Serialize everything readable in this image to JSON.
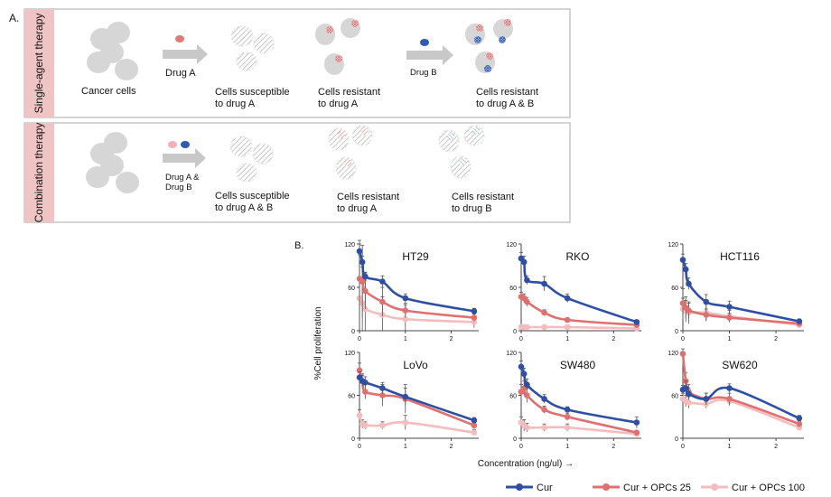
{
  "panel_a": {
    "label": "A.",
    "single": {
      "side_label": "Single-agent therapy",
      "start_label": "Cancer cells",
      "drug1_label": "Drug A",
      "stage1_label": [
        "Cells susceptible",
        "to drug A"
      ],
      "stage2_label": [
        "Cells resistant",
        "to drug A"
      ],
      "drug2_label": "Drug B",
      "stage3_label": [
        "Cells resistant",
        "to drug A & B"
      ]
    },
    "combo": {
      "side_label": "Combination therapy",
      "drug_label": [
        "Drug A &",
        "Drug B"
      ],
      "stage1_label": [
        "Cells susceptible",
        "to drug A & B"
      ],
      "stage2_label": [
        "Cells resistant",
        "to drug A"
      ],
      "stage3_label": [
        "Cells resistant",
        "to drug B"
      ]
    },
    "colors": {
      "drug_a": "#e07a7a",
      "drug_b": "#2e5bb5",
      "drug_a_light": "#f0b2b2",
      "cell": "#d6d6d6",
      "strip": "#f0c4c4"
    }
  },
  "panel_b": {
    "label": "B.",
    "ylabel": "%Cell proliferation",
    "xlabel": "Concentration (ng/ul) →"
  },
  "chart_data": {
    "type": "line",
    "x": [
      0,
      0.0625,
      0.125,
      0.5,
      1,
      2.5
    ],
    "series_styles": [
      {
        "name": "Cur",
        "color": "#2e4fa3"
      },
      {
        "name": "Cur + OPCs 25",
        "color": "#e07070"
      },
      {
        "name": "Cur + OPCs 100",
        "color": "#f4bcbc"
      }
    ],
    "xticks": [
      0,
      1,
      2
    ],
    "yticks": [
      0,
      60,
      120
    ],
    "ylim": [
      0,
      120
    ],
    "xlim": [
      0,
      2.6
    ],
    "subplots": [
      {
        "title": "HT29",
        "series": [
          [
            110,
            95,
            75,
            68,
            45,
            27
          ],
          [
            72,
            68,
            55,
            40,
            28,
            18
          ],
          [
            45,
            38,
            30,
            22,
            16,
            12
          ]
        ],
        "errors": [
          [
            10,
            8,
            6,
            8,
            6,
            4
          ],
          [
            60,
            50,
            25,
            20,
            10,
            5
          ],
          [
            60,
            50,
            40,
            25,
            20,
            8
          ]
        ]
      },
      {
        "title": "RKO",
        "series": [
          [
            100,
            95,
            70,
            65,
            45,
            12
          ],
          [
            47,
            45,
            40,
            25,
            15,
            8
          ],
          [
            5,
            5,
            5,
            5,
            5,
            3
          ]
        ],
        "errors": [
          [
            8,
            8,
            6,
            10,
            6,
            3
          ],
          [
            6,
            6,
            6,
            4,
            3,
            2
          ],
          [
            3,
            3,
            3,
            3,
            3,
            2
          ]
        ]
      },
      {
        "title": "HCT116",
        "series": [
          [
            98,
            85,
            65,
            40,
            33,
            13
          ],
          [
            38,
            32,
            28,
            22,
            18,
            10
          ],
          [
            30,
            27,
            25,
            25,
            20,
            8
          ]
        ],
        "errors": [
          [
            8,
            8,
            8,
            10,
            8,
            3
          ],
          [
            20,
            15,
            10,
            8,
            6,
            4
          ],
          [
            15,
            15,
            15,
            12,
            8,
            4
          ]
        ]
      },
      {
        "title": "LoVo",
        "series": [
          [
            85,
            80,
            78,
            70,
            58,
            25
          ],
          [
            95,
            80,
            65,
            60,
            55,
            18
          ],
          [
            32,
            20,
            18,
            18,
            22,
            8
          ]
        ],
        "errors": [
          [
            8,
            8,
            8,
            8,
            12,
            4
          ],
          [
            10,
            10,
            10,
            15,
            20,
            5
          ],
          [
            8,
            6,
            5,
            5,
            10,
            4
          ]
        ]
      },
      {
        "title": "SW480",
        "series": [
          [
            100,
            90,
            75,
            55,
            40,
            22
          ],
          [
            65,
            70,
            60,
            40,
            30,
            8
          ],
          [
            22,
            18,
            15,
            15,
            15,
            6
          ]
        ],
        "errors": [
          [
            8,
            8,
            8,
            6,
            4,
            8
          ],
          [
            10,
            10,
            10,
            5,
            5,
            3
          ],
          [
            8,
            8,
            6,
            5,
            5,
            3
          ]
        ]
      },
      {
        "title": "SW620",
        "series": [
          [
            68,
            70,
            62,
            55,
            70,
            28
          ],
          [
            118,
            80,
            65,
            55,
            55,
            20
          ],
          [
            55,
            52,
            50,
            48,
            52,
            15
          ]
        ],
        "errors": [
          [
            6,
            10,
            8,
            8,
            6,
            4
          ],
          [
            15,
            12,
            10,
            8,
            8,
            4
          ],
          [
            8,
            8,
            8,
            6,
            6,
            4
          ]
        ]
      }
    ]
  }
}
